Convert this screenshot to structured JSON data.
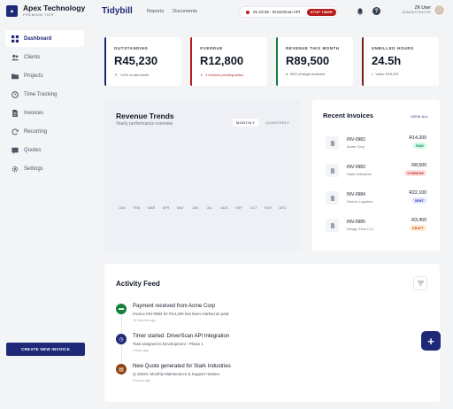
{
  "brand": {
    "name": "Apex Technology",
    "tier": "PREMIUM TIER"
  },
  "sidebar": {
    "items": [
      {
        "label": "Dashboard",
        "icon": "grid-icon"
      },
      {
        "label": "Clients",
        "icon": "users-icon"
      },
      {
        "label": "Projects",
        "icon": "folder-icon"
      },
      {
        "label": "Time Tracking",
        "icon": "clock-icon"
      },
      {
        "label": "Invoices",
        "icon": "document-icon"
      },
      {
        "label": "Recurring",
        "icon": "refresh-icon"
      },
      {
        "label": "Quotes",
        "icon": "quote-icon"
      },
      {
        "label": "Settings",
        "icon": "gear-icon"
      }
    ],
    "create_label": "CREATE NEW INVOICE"
  },
  "topbar": {
    "app_title": "Tidybill",
    "nav": [
      "Reports",
      "Documents"
    ],
    "timer": {
      "text": "01:23:45 - DriverScan API",
      "stop_label": "STOP TIMER"
    },
    "user": {
      "name": "ZK User",
      "role": "ADMINISTRATOR"
    }
  },
  "stats": [
    {
      "label": "OUTSTANDING",
      "value": "R45,230",
      "sub": "+12% vs last month",
      "accent": "#1e2a78"
    },
    {
      "label": "OVERDUE",
      "value": "R12,800",
      "sub": "4 invoices pending action",
      "accent": "#b91c1c"
    },
    {
      "label": "REVENUE THIS MONTH",
      "value": "R89,500",
      "sub": "85% of target achieved",
      "accent": "#15803d"
    },
    {
      "label": "UNBILLED HOURS",
      "value": "24.5h",
      "sub": "Value: R18,375",
      "accent": "#7f1d1d"
    }
  ],
  "revenue": {
    "title": "Revenue Trends",
    "subtitle": "Yearly performance overview",
    "toggle": [
      "MONTHLY",
      "QUARTERLY"
    ],
    "months": [
      "JAN",
      "FEB",
      "MAR",
      "APR",
      "MAY",
      "JUN",
      "JUL",
      "AUG",
      "SEP",
      "OCT",
      "NOV",
      "DEC"
    ]
  },
  "invoices": {
    "title": "Recent Invoices",
    "view_all": "VIEW ALL",
    "rows": [
      {
        "id": "INV-0982",
        "client": "Acme Corp",
        "amount": "R14,200",
        "status": "PAID",
        "bg": "#d1fae5",
        "fg": "#047857"
      },
      {
        "id": "INV-0983",
        "client": "Stark Industries",
        "amount": "R8,500",
        "status": "OVERDUE",
        "bg": "#fee2e2",
        "fg": "#b91c1c"
      },
      {
        "id": "INV-0984",
        "client": "Globex Logistics",
        "amount": "R22,100",
        "status": "SENT",
        "bg": "#e0e7ff",
        "fg": "#3730a3"
      },
      {
        "id": "INV-0985",
        "client": "Design Flow LLC",
        "amount": "R3,450",
        "status": "DRAFT",
        "bg": "#ffedd5",
        "fg": "#c2410c"
      }
    ]
  },
  "feed": {
    "title": "Activity Feed",
    "events": [
      {
        "title": "Payment received from Acme Corp",
        "desc": "Invoice INV-0982 for R14,200 has been marked as paid.",
        "time": "10 minutes ago",
        "color": "#15803d",
        "icon": "money-icon"
      },
      {
        "title": "Timer started: DriverScan API Integration",
        "desc": "Task assigned to Development - Phase 1",
        "time": "1 hour ago",
        "color": "#1e2a78",
        "icon": "timer-icon"
      },
      {
        "title": "New Quote generated for Stark Industries",
        "desc": "Q-10024: Monthly Maintenance & Support retainer.",
        "time": "3 hours ago",
        "color": "#92400e",
        "icon": "quote-icon"
      }
    ]
  }
}
